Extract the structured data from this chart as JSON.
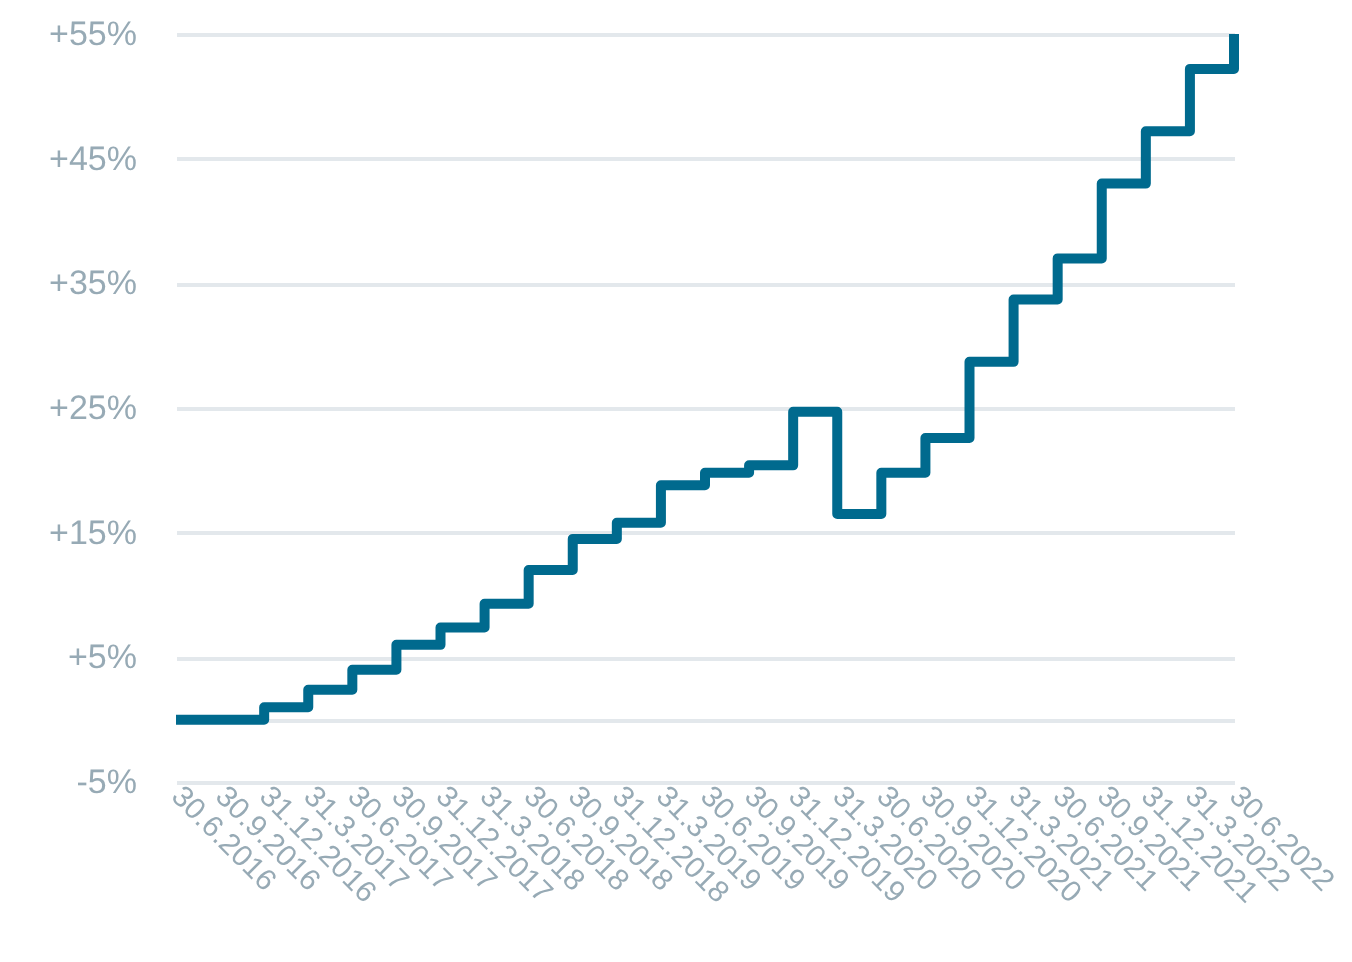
{
  "chart_data": {
    "type": "step",
    "categories": [
      "30.6.2016",
      "30.9.2016",
      "31.12.2016",
      "31.3.2017",
      "30.6.2017",
      "30.9.2017",
      "31.12.2017",
      "31.3.2018",
      "30.6.2018",
      "30.9.2018",
      "31.12.2018",
      "31.3.2019",
      "30.6.2019",
      "30.9.2019",
      "31.12.2019",
      "31.3.2020",
      "30.6.2020",
      "30.9.2020",
      "31.12.2020",
      "31.3.2021",
      "30.6.2021",
      "30.9.2021",
      "31.12.2021",
      "31.3.2022",
      "30.6.2022"
    ],
    "series": [
      {
        "color": "#006a8e",
        "values": [
          0,
          0,
          1,
          2.4,
          4,
          6,
          7.4,
          9.3,
          12,
          14.5,
          15.8,
          18.8,
          19.8,
          20.4,
          24.7,
          16.5,
          19.8,
          22.6,
          28.7,
          33.7,
          37,
          43,
          47.2,
          52.2,
          55
        ]
      }
    ],
    "ylim": [
      -5,
      55
    ],
    "yticks": [
      {
        "value": -5,
        "label": "-5%"
      },
      {
        "value": 0,
        "label": null
      },
      {
        "value": 5,
        "label": "+5%"
      },
      {
        "value": 15,
        "label": "+15%"
      },
      {
        "value": 25,
        "label": "+25%"
      },
      {
        "value": 35,
        "label": "+35%"
      },
      {
        "value": 45,
        "label": "+45%"
      },
      {
        "value": 55,
        "label": "+55%"
      }
    ],
    "grid": "y",
    "line_style": "solid"
  }
}
